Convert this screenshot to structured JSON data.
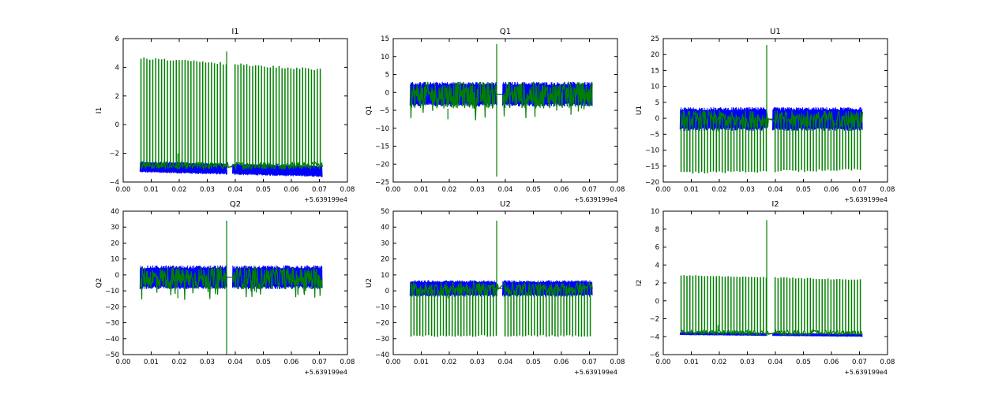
{
  "chart_data": [
    {
      "type": "line",
      "title": "I1",
      "xlabel": "",
      "ylabel": "I1",
      "x_offset": "+5.639199e4",
      "xlim": [
        0.0,
        0.08
      ],
      "ylim": [
        -4,
        6
      ],
      "xticks": [
        "0.00",
        "0.01",
        "0.02",
        "0.03",
        "0.04",
        "0.05",
        "0.06",
        "0.07",
        "0.08"
      ],
      "yticks": [
        "−4",
        "−2",
        "0",
        "2",
        "4",
        "6"
      ],
      "data_range": [
        0.006,
        0.071
      ],
      "gap": [
        0.037,
        0.039
      ],
      "series": [
        {
          "name": "blue",
          "color": "#0000ff",
          "band": [
            -3.3,
            -2.6
          ],
          "kind": "band",
          "trend": -0.3
        },
        {
          "name": "green",
          "color": "#008000",
          "kind": "spikes",
          "base": [
            -3.1,
            -2.6
          ],
          "spike_start": 4.6,
          "spike_end": 3.8,
          "spike_dir": 1,
          "spikes": 62,
          "outlier": {
            "x": 0.0369,
            "y": 5.1
          }
        }
      ]
    },
    {
      "type": "line",
      "title": "Q1",
      "xlabel": "",
      "ylabel": "Q1",
      "x_offset": "+5.639199e4",
      "xlim": [
        0.0,
        0.08
      ],
      "ylim": [
        -25,
        15
      ],
      "xticks": [
        "0.00",
        "0.01",
        "0.02",
        "0.03",
        "0.04",
        "0.05",
        "0.06",
        "0.07",
        "0.08"
      ],
      "yticks": [
        "−25",
        "−20",
        "−15",
        "−10",
        "−5",
        "0",
        "5",
        "10",
        "15"
      ],
      "data_range": [
        0.006,
        0.071
      ],
      "gap": [
        0.037,
        0.039
      ],
      "series": [
        {
          "name": "blue",
          "color": "#0000ff",
          "band": [
            -3.5,
            2.5
          ],
          "kind": "band",
          "trend": 0
        },
        {
          "name": "green",
          "color": "#008000",
          "kind": "noise",
          "base": [
            -4.5,
            3
          ],
          "outlier": {
            "x": 0.0369,
            "y": 13.5,
            "y2": -23.5
          }
        }
      ]
    },
    {
      "type": "line",
      "title": "U1",
      "xlabel": "",
      "ylabel": "U1",
      "x_offset": "+5.639199e4",
      "xlim": [
        0.0,
        0.08
      ],
      "ylim": [
        -20,
        25
      ],
      "xticks": [
        "0.00",
        "0.01",
        "0.02",
        "0.03",
        "0.04",
        "0.05",
        "0.06",
        "0.07",
        "0.08"
      ],
      "yticks": [
        "−20",
        "−15",
        "−10",
        "−5",
        "0",
        "5",
        "10",
        "15",
        "20",
        "25"
      ],
      "data_range": [
        0.006,
        0.071
      ],
      "gap": [
        0.037,
        0.039
      ],
      "series": [
        {
          "name": "blue",
          "color": "#0000ff",
          "band": [
            -3.5,
            3
          ],
          "kind": "band",
          "trend": 0
        },
        {
          "name": "green",
          "color": "#008000",
          "kind": "spikes",
          "base": [
            -3,
            2.5
          ],
          "spike_start": -17,
          "spike_end": -16,
          "spike_dir": -1,
          "spikes": 62,
          "outlier": {
            "x": 0.0369,
            "y": 23
          }
        }
      ]
    },
    {
      "type": "line",
      "title": "Q2",
      "xlabel": "",
      "ylabel": "Q2",
      "x_offset": "+5.639199e4",
      "xlim": [
        0.0,
        0.08
      ],
      "ylim": [
        -50,
        40
      ],
      "xticks": [
        "0.00",
        "0.01",
        "0.02",
        "0.03",
        "0.04",
        "0.05",
        "0.06",
        "0.07",
        "0.08"
      ],
      "yticks": [
        "−50",
        "−40",
        "−30",
        "−20",
        "−10",
        "0",
        "10",
        "20",
        "30",
        "40"
      ],
      "data_range": [
        0.006,
        0.071
      ],
      "gap": [
        0.037,
        0.039
      ],
      "series": [
        {
          "name": "blue",
          "color": "#0000ff",
          "band": [
            -8,
            5
          ],
          "kind": "band",
          "trend": 0
        },
        {
          "name": "green",
          "color": "#008000",
          "kind": "noise",
          "base": [
            -9,
            5
          ],
          "outlier": {
            "x": 0.0369,
            "y": 34,
            "y2": -50
          }
        }
      ]
    },
    {
      "type": "line",
      "title": "U2",
      "xlabel": "",
      "ylabel": "U2",
      "x_offset": "+5.639199e4",
      "xlim": [
        0.0,
        0.08
      ],
      "ylim": [
        -40,
        50
      ],
      "xticks": [
        "0.00",
        "0.01",
        "0.02",
        "0.03",
        "0.04",
        "0.05",
        "0.06",
        "0.07",
        "0.08"
      ],
      "yticks": [
        "−40",
        "−30",
        "−20",
        "−10",
        "0",
        "10",
        "20",
        "30",
        "40",
        "50"
      ],
      "data_range": [
        0.006,
        0.071
      ],
      "gap": [
        0.037,
        0.039
      ],
      "series": [
        {
          "name": "blue",
          "color": "#0000ff",
          "band": [
            -3,
            6
          ],
          "kind": "band",
          "trend": 0
        },
        {
          "name": "green",
          "color": "#008000",
          "kind": "spikes",
          "base": [
            -3,
            5.5
          ],
          "spike_start": -28,
          "spike_end": -28,
          "spike_dir": -1,
          "spikes": 62,
          "outlier": {
            "x": 0.0369,
            "y": 44
          }
        }
      ]
    },
    {
      "type": "line",
      "title": "I2",
      "xlabel": "",
      "ylabel": "I2",
      "x_offset": "+5.639199e4",
      "xlim": [
        0.0,
        0.08
      ],
      "ylim": [
        -6,
        10
      ],
      "xticks": [
        "0.00",
        "0.01",
        "0.02",
        "0.03",
        "0.04",
        "0.05",
        "0.06",
        "0.07",
        "0.08"
      ],
      "yticks": [
        "−6",
        "−4",
        "−2",
        "0",
        "2",
        "4",
        "6",
        "8",
        "10"
      ],
      "data_range": [
        0.006,
        0.071
      ],
      "gap": [
        0.037,
        0.039
      ],
      "series": [
        {
          "name": "blue",
          "color": "#0000ff",
          "band": [
            -3.8,
            -3.5
          ],
          "kind": "band",
          "trend": -0.2
        },
        {
          "name": "green",
          "color": "#008000",
          "kind": "spikes",
          "base": [
            -3.8,
            -3.3
          ],
          "spike_start": 2.8,
          "spike_end": 2.3,
          "spike_dir": 1,
          "spikes": 62,
          "outlier": {
            "x": 0.0369,
            "y": 9
          }
        }
      ]
    }
  ]
}
